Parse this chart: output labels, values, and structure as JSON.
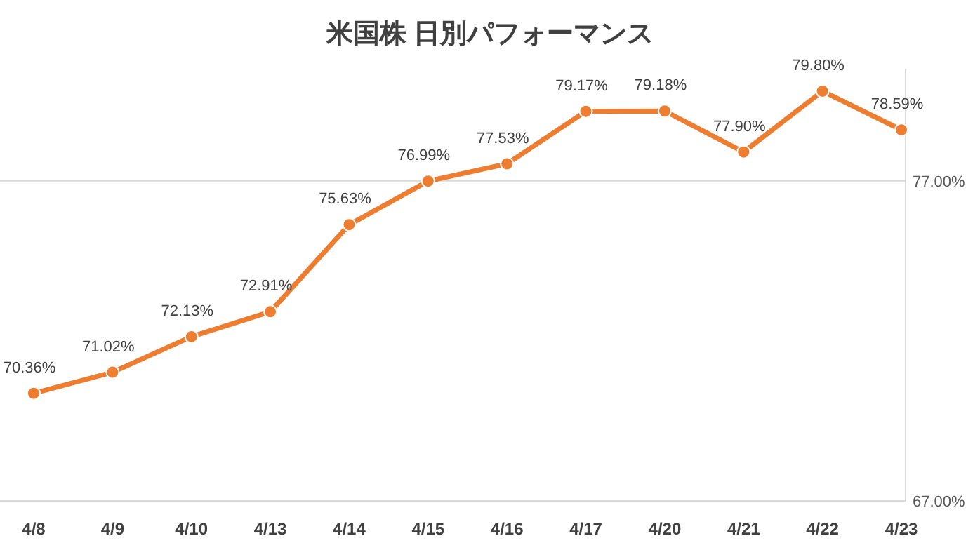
{
  "chart_data": {
    "type": "line",
    "title": "米国株 日別パフォーマンス",
    "categories": [
      "4/8",
      "4/9",
      "4/10",
      "4/13",
      "4/14",
      "4/15",
      "4/16",
      "4/17",
      "4/20",
      "4/21",
      "4/22",
      "4/23"
    ],
    "series": [
      {
        "color": "#ed7d31",
        "values": [
          70.36,
          71.02,
          72.13,
          72.91,
          75.63,
          76.99,
          77.53,
          79.17,
          79.18,
          77.9,
          79.8,
          78.59
        ],
        "value_labels": [
          "70.36%",
          "71.02%",
          "72.13%",
          "72.91%",
          "75.63%",
          "76.99%",
          "77.53%",
          "79.17%",
          "79.18%",
          "77.90%",
          "79.80%",
          "78.59%"
        ]
      }
    ],
    "ylim": [
      67,
      80.5
    ],
    "yticks": [
      {
        "value": 67,
        "label": "67.00%"
      },
      {
        "value": 77,
        "label": "77.00%"
      }
    ],
    "grid": "y",
    "marker": "circle",
    "line_style": "solid"
  }
}
